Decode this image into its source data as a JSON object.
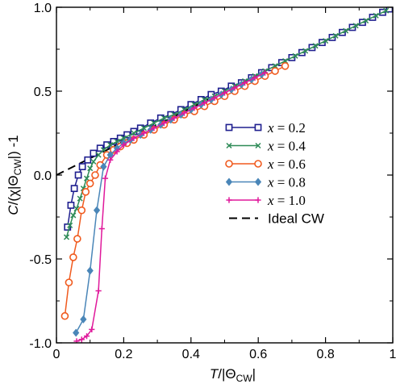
{
  "chart_data": {
    "type": "line",
    "xlabel": {
      "main": "T/|Θ",
      "sub": "CW",
      "end": "|"
    },
    "ylabel": {
      "main": "C/(χ|Θ",
      "sub": "CW",
      "end": "|) -1"
    },
    "xlim": [
      0,
      1
    ],
    "ylim": [
      -1,
      1
    ],
    "xticks": [
      "0",
      "0.2",
      "0.4",
      "0.6",
      "0.8",
      "1"
    ],
    "yticks": [
      "-1.0",
      "-0.5",
      "0.0",
      "0.5",
      "1.0"
    ],
    "grid": false,
    "legend_position": "center-right",
    "series": [
      {
        "name": "x = 0.2",
        "legend_var": "x",
        "legend_val": " = 0.2",
        "color": "#1f1f8f",
        "marker": "square-open",
        "points": [
          [
            0.033,
            -0.31
          ],
          [
            0.043,
            -0.18
          ],
          [
            0.053,
            -0.08
          ],
          [
            0.065,
            0.0
          ],
          [
            0.077,
            0.05
          ],
          [
            0.093,
            0.09
          ],
          [
            0.11,
            0.13
          ],
          [
            0.13,
            0.16
          ],
          [
            0.15,
            0.18
          ],
          [
            0.17,
            0.2
          ],
          [
            0.19,
            0.22
          ],
          [
            0.21,
            0.24
          ],
          [
            0.23,
            0.26
          ],
          [
            0.25,
            0.28
          ],
          [
            0.28,
            0.31
          ],
          [
            0.31,
            0.34
          ],
          [
            0.34,
            0.36
          ],
          [
            0.37,
            0.39
          ],
          [
            0.4,
            0.42
          ],
          [
            0.43,
            0.45
          ],
          [
            0.46,
            0.48
          ],
          [
            0.49,
            0.5
          ],
          [
            0.52,
            0.53
          ],
          [
            0.55,
            0.55
          ],
          [
            0.58,
            0.58
          ],
          [
            0.61,
            0.61
          ],
          [
            0.64,
            0.64
          ],
          [
            0.67,
            0.67
          ],
          [
            0.7,
            0.7
          ],
          [
            0.73,
            0.73
          ],
          [
            0.76,
            0.76
          ],
          [
            0.79,
            0.79
          ],
          [
            0.82,
            0.82
          ],
          [
            0.85,
            0.85
          ],
          [
            0.88,
            0.88
          ],
          [
            0.91,
            0.91
          ],
          [
            0.94,
            0.94
          ],
          [
            0.97,
            0.97
          ],
          [
            0.99,
            0.99
          ]
        ]
      },
      {
        "name": "x = 0.4",
        "legend_var": "x",
        "legend_val": " = 0.4",
        "color": "#2e8b57",
        "marker": "cross",
        "points": [
          [
            0.03,
            -0.37
          ],
          [
            0.04,
            -0.3
          ],
          [
            0.05,
            -0.24
          ],
          [
            0.06,
            -0.2
          ],
          [
            0.07,
            -0.14
          ],
          [
            0.08,
            -0.08
          ],
          [
            0.09,
            -0.02
          ],
          [
            0.1,
            0.04
          ],
          [
            0.11,
            0.08
          ],
          [
            0.125,
            0.12
          ],
          [
            0.14,
            0.15
          ],
          [
            0.16,
            0.18
          ],
          [
            0.18,
            0.2
          ],
          [
            0.2,
            0.22
          ],
          [
            0.23,
            0.25
          ],
          [
            0.26,
            0.28
          ],
          [
            0.29,
            0.31
          ],
          [
            0.32,
            0.34
          ],
          [
            0.35,
            0.36
          ],
          [
            0.38,
            0.39
          ],
          [
            0.41,
            0.42
          ],
          [
            0.44,
            0.45
          ],
          [
            0.47,
            0.47
          ],
          [
            0.5,
            0.5
          ],
          [
            0.53,
            0.53
          ],
          [
            0.56,
            0.56
          ],
          [
            0.59,
            0.59
          ],
          [
            0.62,
            0.62
          ],
          [
            0.65,
            0.65
          ],
          [
            0.68,
            0.68
          ],
          [
            0.71,
            0.71
          ],
          [
            0.74,
            0.74
          ],
          [
            0.77,
            0.77
          ],
          [
            0.8,
            0.8
          ],
          [
            0.83,
            0.83
          ],
          [
            0.86,
            0.86
          ],
          [
            0.89,
            0.89
          ],
          [
            0.92,
            0.92
          ],
          [
            0.95,
            0.95
          ],
          [
            0.98,
            0.98
          ]
        ]
      },
      {
        "name": "x = 0.6",
        "legend_var": "x",
        "legend_val": " = 0.6",
        "color": "#f05a1e",
        "marker": "circle-open",
        "points": [
          [
            0.025,
            -0.84
          ],
          [
            0.037,
            -0.64
          ],
          [
            0.05,
            -0.49
          ],
          [
            0.062,
            -0.38
          ],
          [
            0.075,
            -0.21
          ],
          [
            0.087,
            -0.1
          ],
          [
            0.1,
            -0.05
          ],
          [
            0.115,
            0.0
          ],
          [
            0.13,
            0.06
          ],
          [
            0.15,
            0.12
          ],
          [
            0.17,
            0.15
          ],
          [
            0.19,
            0.17
          ],
          [
            0.21,
            0.19
          ],
          [
            0.23,
            0.21
          ],
          [
            0.26,
            0.24
          ],
          [
            0.29,
            0.27
          ],
          [
            0.32,
            0.3
          ],
          [
            0.35,
            0.33
          ],
          [
            0.38,
            0.36
          ],
          [
            0.41,
            0.38
          ],
          [
            0.44,
            0.41
          ],
          [
            0.47,
            0.44
          ],
          [
            0.5,
            0.47
          ],
          [
            0.53,
            0.5
          ],
          [
            0.56,
            0.53
          ],
          [
            0.59,
            0.56
          ],
          [
            0.62,
            0.59
          ],
          [
            0.65,
            0.62
          ],
          [
            0.68,
            0.65
          ]
        ]
      },
      {
        "name": "x = 0.8",
        "legend_var": "x",
        "legend_val": " = 0.8",
        "color": "#4a86b8",
        "marker": "diamond",
        "points": [
          [
            0.058,
            -0.94
          ],
          [
            0.08,
            -0.86
          ],
          [
            0.1,
            -0.57
          ],
          [
            0.12,
            -0.21
          ],
          [
            0.14,
            0.05
          ],
          [
            0.16,
            0.12
          ],
          [
            0.18,
            0.16
          ],
          [
            0.2,
            0.19
          ],
          [
            0.22,
            0.21
          ],
          [
            0.25,
            0.24
          ],
          [
            0.28,
            0.27
          ],
          [
            0.31,
            0.3
          ],
          [
            0.34,
            0.33
          ],
          [
            0.37,
            0.36
          ],
          [
            0.4,
            0.39
          ],
          [
            0.43,
            0.42
          ],
          [
            0.46,
            0.45
          ],
          [
            0.49,
            0.48
          ],
          [
            0.52,
            0.51
          ],
          [
            0.55,
            0.54
          ],
          [
            0.58,
            0.57
          ],
          [
            0.61,
            0.6
          ]
        ]
      },
      {
        "name": "x = 1.0",
        "legend_var": "x",
        "legend_val": " = 1.0",
        "color": "#e0199b",
        "marker": "plus",
        "points": [
          [
            0.06,
            -0.99
          ],
          [
            0.075,
            -0.98
          ],
          [
            0.09,
            -0.96
          ],
          [
            0.105,
            -0.92
          ],
          [
            0.125,
            -0.69
          ],
          [
            0.135,
            -0.32
          ],
          [
            0.145,
            -0.02
          ],
          [
            0.16,
            0.09
          ],
          [
            0.18,
            0.14
          ],
          [
            0.2,
            0.18
          ],
          [
            0.23,
            0.22
          ],
          [
            0.26,
            0.25
          ],
          [
            0.29,
            0.28
          ],
          [
            0.32,
            0.31
          ],
          [
            0.35,
            0.34
          ],
          [
            0.38,
            0.37
          ],
          [
            0.41,
            0.4
          ],
          [
            0.44,
            0.43
          ],
          [
            0.47,
            0.46
          ],
          [
            0.5,
            0.49
          ],
          [
            0.53,
            0.52
          ],
          [
            0.56,
            0.55
          ],
          [
            0.59,
            0.58
          ],
          [
            0.62,
            0.61
          ]
        ]
      }
    ],
    "reference_line": {
      "name": "Ideal CW",
      "color": "#000000",
      "style": "dashed",
      "points": [
        [
          0,
          0
        ],
        [
          1,
          1
        ]
      ]
    }
  }
}
